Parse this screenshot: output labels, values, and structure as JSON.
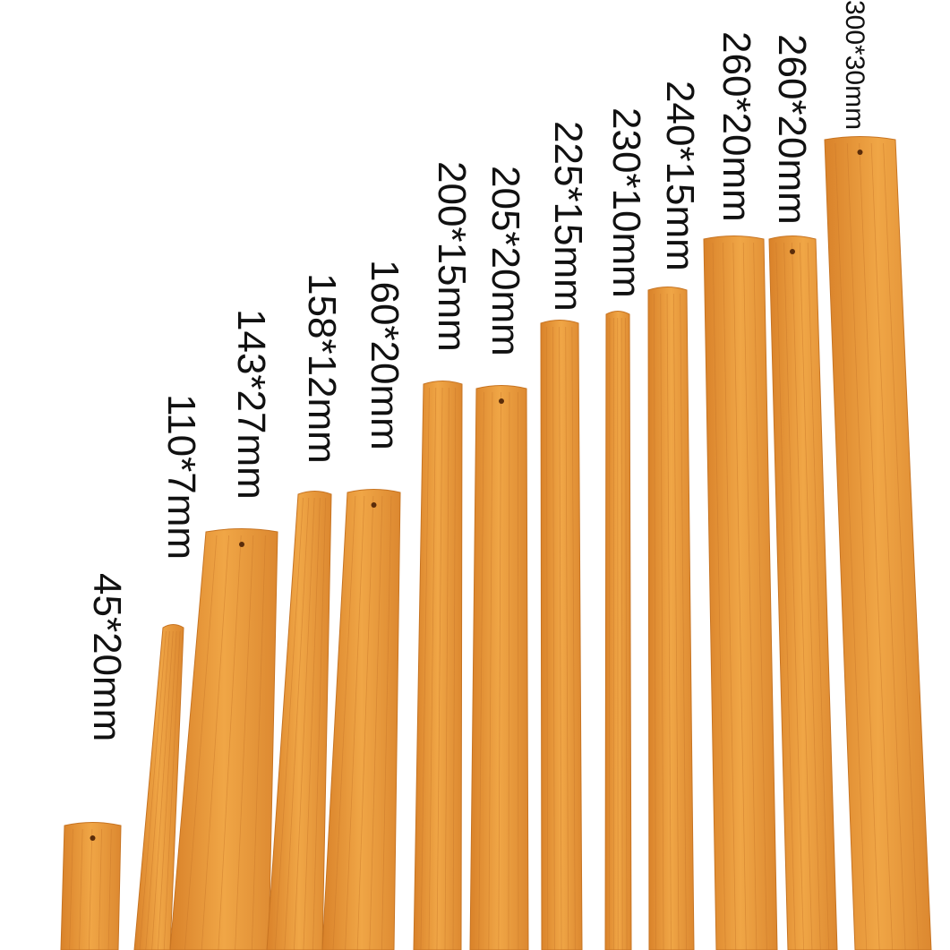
{
  "strips": [
    {
      "label": "45*20mm"
    },
    {
      "label": "110*7mm"
    },
    {
      "label": "143*27mm"
    },
    {
      "label": "158*12mm"
    },
    {
      "label": "160*20mm"
    },
    {
      "label": "200*15mm"
    },
    {
      "label": "205*20mm"
    },
    {
      "label": "225*15mm"
    },
    {
      "label": "230*10mm"
    },
    {
      "label": "240*15mm"
    },
    {
      "label": "260*20mm"
    },
    {
      "label": "260*20mm"
    },
    {
      "label": "300*30mm"
    }
  ]
}
